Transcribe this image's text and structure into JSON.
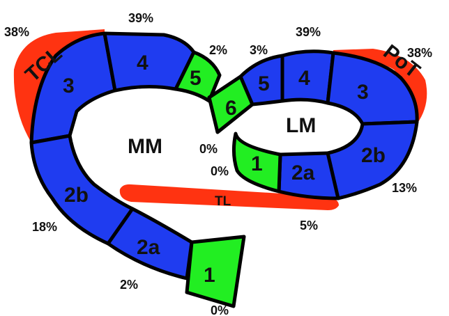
{
  "colors": {
    "blue": "#1f3cf0",
    "green": "#22ee22",
    "red": "#ff3311",
    "outline": "#000000"
  },
  "labels": {
    "medial": "MM",
    "lateral": "LM",
    "tcl": "TCL",
    "pot": "PoT",
    "tl": "TL"
  },
  "medial": {
    "seg1": "1",
    "seg2a": "2a",
    "seg2b": "2b",
    "seg3": "3",
    "seg4": "4",
    "seg5": "5",
    "seg6": "6"
  },
  "lateral": {
    "seg1": "1",
    "seg2a": "2a",
    "seg2b": "2b",
    "seg3": "3",
    "seg4": "4",
    "seg5": "5"
  },
  "percentages": {
    "p38_left": "38%",
    "p39_left": "39%",
    "p2_top": "2%",
    "p3_top": "3%",
    "p39_right": "39%",
    "p38_right": "38%",
    "p0_mid1": "0%",
    "p0_mid2": "0%",
    "p13": "13%",
    "p5": "5%",
    "p18": "18%",
    "p2_bottom": "2%",
    "p0_bottom": "0%"
  }
}
